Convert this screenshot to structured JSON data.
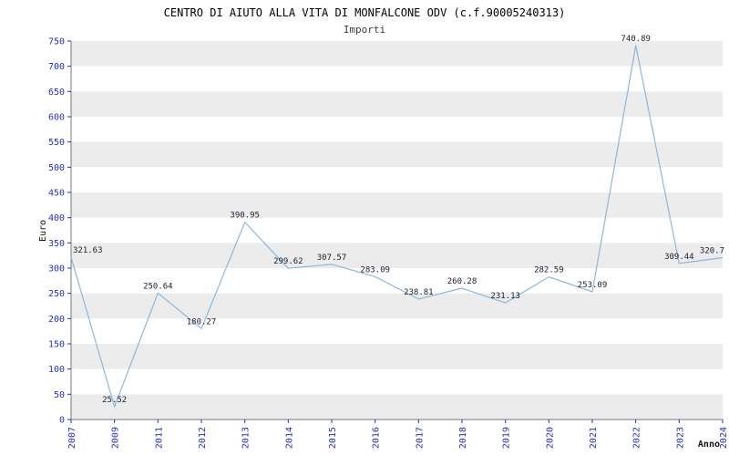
{
  "header": {
    "title": "CENTRO DI AIUTO ALLA VITA DI MONFALCONE ODV (c.f.90005240313)",
    "subtitle": "Importi"
  },
  "chart_data": {
    "type": "line",
    "title": "CENTRO DI AIUTO ALLA VITA DI MONFALCONE ODV (c.f.90005240313)",
    "subtitle": "Importi",
    "xlabel": "Anno",
    "ylabel": "Euro",
    "categories": [
      "2007",
      "2009",
      "2011",
      "2012",
      "2013",
      "2014",
      "2015",
      "2016",
      "2017",
      "2018",
      "2019",
      "2020",
      "2021",
      "2022",
      "2023",
      "2024"
    ],
    "values": [
      321.63,
      25.52,
      250.64,
      180.27,
      390.95,
      299.62,
      307.57,
      283.09,
      238.81,
      260.28,
      231.13,
      282.59,
      253.09,
      740.89,
      309.44,
      320.7
    ],
    "ylim": [
      0,
      750
    ],
    "ytick": 50,
    "legend": "none",
    "grid": "horizontal-bands",
    "colors": {
      "line": "#8ab8dd",
      "tick_text": "#2233bb",
      "band": "#ececec",
      "band_alt": "#ffffff",
      "label_text": "#1c1c2e",
      "axis": "#777777",
      "subtitle": "#3c3c3c"
    }
  }
}
